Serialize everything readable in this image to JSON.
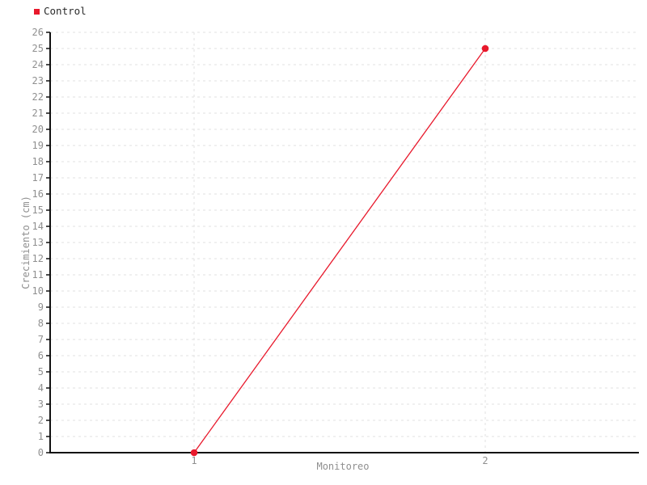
{
  "page": {
    "background": "#ffffff"
  },
  "legend": {
    "items": [
      {
        "label": "Control",
        "color": "#e8192c",
        "text_color": "#2b2b2b"
      }
    ]
  },
  "chart_data": {
    "type": "line",
    "categories": [
      "1",
      "2"
    ],
    "series": [
      {
        "name": "Control",
        "color": "#e8192c",
        "values": [
          0,
          25
        ]
      }
    ],
    "xlabel": "Monitoreo",
    "ylabel": "Crecimiento (cm)",
    "ylim": [
      0,
      26
    ],
    "ytick_step": 1,
    "xtick_labels": [
      "1",
      "2"
    ],
    "grid": {
      "style": "dashed",
      "horizontal": "every-tick",
      "vertical": "at-categories"
    },
    "legend_position": "top-left",
    "marker": "circle",
    "colors": {
      "series": "#e8192c",
      "axis_line": "#111111",
      "grid_line": "#e2e2e2",
      "tick_label": "#8f8f8f",
      "axis_label": "#8f8f8f",
      "legend_text": "#2b2b2b",
      "background": "#ffffff"
    }
  }
}
